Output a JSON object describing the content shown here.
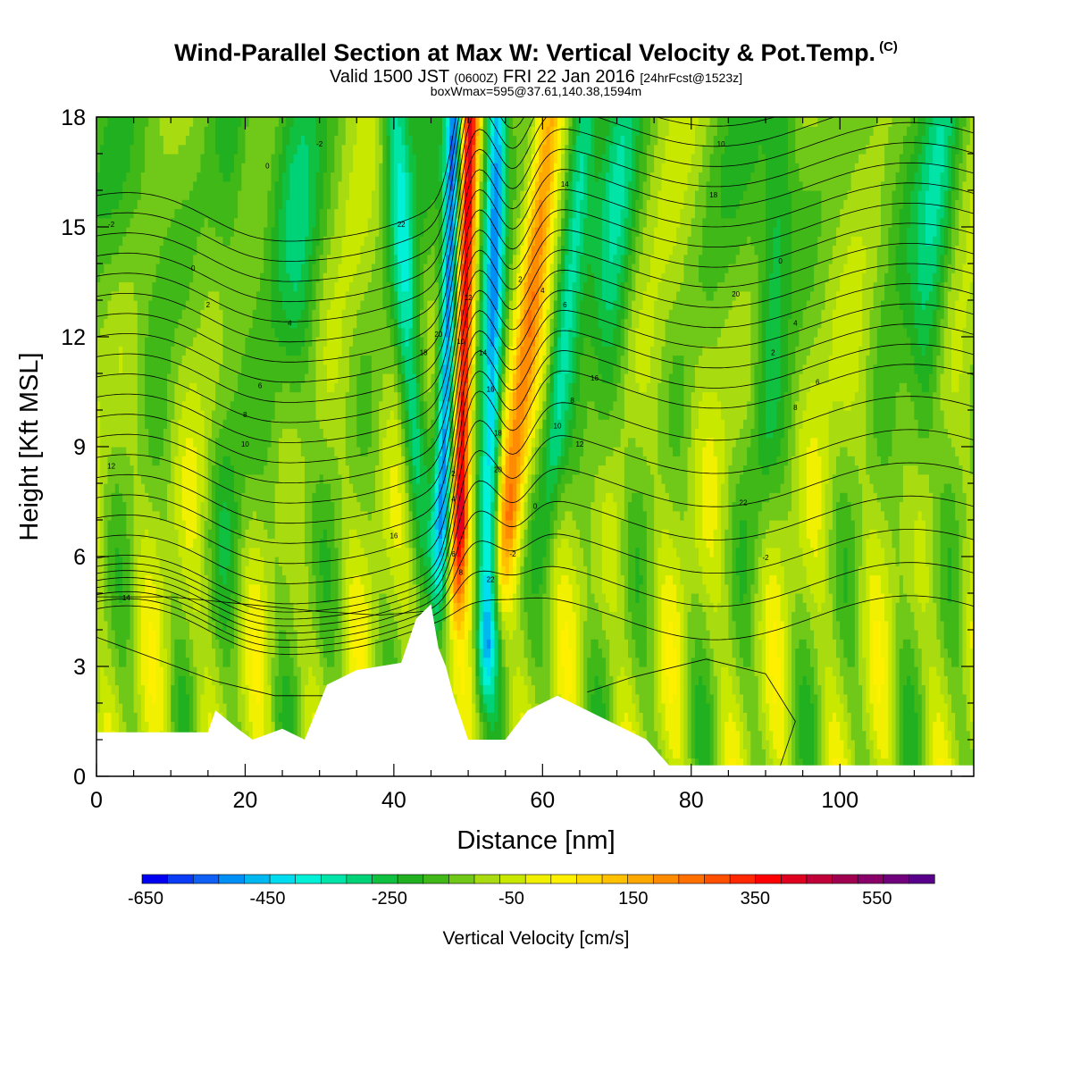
{
  "header": {
    "title": "Wind-Parallel Section at Max W: Vertical Velocity & Pot.Temp.",
    "title_tag": "(C)",
    "valid_prefix": "Valid 1500 JST",
    "valid_utc": "(0600Z)",
    "valid_date": "FRI 22 Jan 2016",
    "forecast": "[24hrFcst@1523z]",
    "boxmax": "boxWmax=595@37.61,140.38,1594m"
  },
  "chart_data": {
    "type": "heatmap",
    "title": "Wind-Parallel Section at Max W: Vertical Velocity & Pot.Temp.",
    "xlabel": "Distance [nm]",
    "ylabel": "Height [Kft MSL]",
    "xlim": [
      0,
      118
    ],
    "ylim": [
      0,
      18
    ],
    "x_ticks": [
      "0",
      "20",
      "40",
      "60",
      "80",
      "100"
    ],
    "y_ticks": [
      "0",
      "3",
      "6",
      "9",
      "12",
      "15",
      "18"
    ],
    "colorbar": {
      "title": "Vertical Velocity [cm/s]",
      "labels": [
        "-650",
        "-450",
        "-250",
        "-50",
        "150",
        "350",
        "550"
      ],
      "range": [
        -650,
        650
      ],
      "step": 50,
      "colors": [
        "#0000f0",
        "#0a3cf5",
        "#1060f5",
        "#0090f5",
        "#00b8f0",
        "#00dcf0",
        "#00f0d8",
        "#00e4a8",
        "#00d278",
        "#10c040",
        "#20b020",
        "#40b818",
        "#70c818",
        "#a8dc10",
        "#c8e800",
        "#f0f000",
        "#fff000",
        "#ffd800",
        "#ffc000",
        "#ffa800",
        "#ff8c00",
        "#ff7000",
        "#ff5000",
        "#ff2800",
        "#ff0000",
        "#e00020",
        "#c00038",
        "#a00050",
        "#880068",
        "#70007c",
        "#58008c"
      ]
    },
    "contour_field": "Potential Temperature (C)",
    "contour_labels": [
      "-2",
      "0",
      "2",
      "4",
      "6",
      "8",
      "10",
      "12",
      "14",
      "16",
      "18",
      "20",
      "22"
    ],
    "max_vertical_velocity": 595,
    "features": [
      {
        "name": "strong updraft core",
        "x": 49,
        "y_range": [
          4,
          18
        ],
        "value": 595
      },
      {
        "name": "downdraft core",
        "x": 47,
        "y_range": [
          4.5,
          18
        ],
        "value": -450
      },
      {
        "name": "downdraft core",
        "x": 53,
        "y_range": [
          1.5,
          18
        ],
        "value": -400
      },
      {
        "name": "updraft band",
        "x": 57,
        "y_range": [
          5,
          18
        ],
        "value": 300
      },
      {
        "name": "downdraft band",
        "x": 42,
        "y_range": [
          7,
          18
        ],
        "value": -250
      },
      {
        "name": "downdraft band",
        "x": 62,
        "y_range": [
          6,
          18
        ],
        "value": -200
      }
    ],
    "terrain_top_kft": [
      {
        "x": 0,
        "h": 1.2
      },
      {
        "x": 15,
        "h": 1.2
      },
      {
        "x": 16,
        "h": 1.8
      },
      {
        "x": 19,
        "h": 1.3
      },
      {
        "x": 21,
        "h": 1.0
      },
      {
        "x": 25,
        "h": 1.3
      },
      {
        "x": 28,
        "h": 1.0
      },
      {
        "x": 31,
        "h": 2.5
      },
      {
        "x": 35,
        "h": 2.9
      },
      {
        "x": 41,
        "h": 3.1
      },
      {
        "x": 43,
        "h": 4.3
      },
      {
        "x": 45,
        "h": 4.7
      },
      {
        "x": 46,
        "h": 3.5
      },
      {
        "x": 47,
        "h": 3.0
      },
      {
        "x": 48,
        "h": 2.2
      },
      {
        "x": 50,
        "h": 1.0
      },
      {
        "x": 55,
        "h": 1.0
      },
      {
        "x": 58,
        "h": 1.8
      },
      {
        "x": 62,
        "h": 2.2
      },
      {
        "x": 66,
        "h": 1.8
      },
      {
        "x": 70,
        "h": 1.4
      },
      {
        "x": 74,
        "h": 1.0
      },
      {
        "x": 77,
        "h": 0.3
      },
      {
        "x": 118,
        "h": 0.3
      }
    ]
  }
}
